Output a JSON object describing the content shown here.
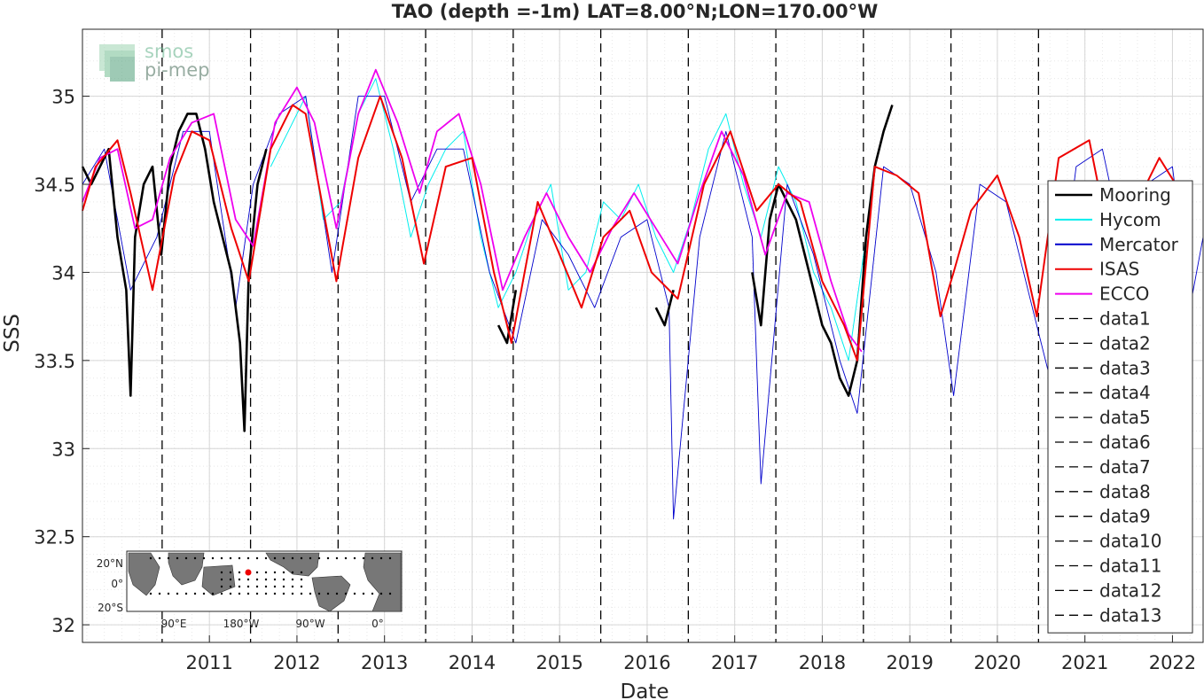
{
  "chart_data": {
    "type": "line",
    "title": "TAO (depth =-1m) LAT=8.00°N;LON=170.00°W",
    "xlabel": "Date",
    "ylabel": "SSS",
    "xlim": [
      2010.05,
      2022.85
    ],
    "ylim": [
      31.9,
      35.38
    ],
    "x_ticks": [
      "2011",
      "2012",
      "2013",
      "2014",
      "2015",
      "2016",
      "2017",
      "2018",
      "2019",
      "2020",
      "2021",
      "2022"
    ],
    "y_ticks": [
      "32",
      "32.5",
      "33",
      "33.5",
      "34",
      "34.5",
      "35"
    ],
    "grid": true,
    "minor_grid": true,
    "legend_position": "right",
    "watermark": "smos pi-mep",
    "series": [
      {
        "name": "Mooring",
        "color": "#000000",
        "x": [
          2010.05,
          2010.15,
          2010.25,
          2010.35,
          2010.45,
          2010.55,
          2010.6,
          2010.65,
          2010.75,
          2010.85,
          2010.95,
          2011.05,
          2011.15,
          2011.25,
          2011.35,
          2011.45,
          2011.55,
          2011.65,
          2011.75,
          2011.85,
          2011.9,
          2011.95,
          2012.05,
          2012.15,
          null,
          2014.8,
          2014.9,
          2015.0,
          null,
          2016.6,
          2016.7,
          2016.8,
          null,
          2017.7,
          2017.8,
          2017.9,
          2018.0,
          2018.1,
          2018.2,
          2018.3,
          2018.4,
          2018.5,
          2018.6,
          2018.7,
          2018.8,
          2018.9,
          2019.0,
          2019.1,
          2019.2,
          2019.3
        ],
        "y": [
          34.6,
          34.5,
          34.6,
          34.7,
          34.2,
          33.9,
          33.3,
          34.2,
          34.5,
          34.6,
          34.1,
          34.6,
          34.8,
          34.9,
          34.9,
          34.7,
          34.4,
          34.2,
          34.0,
          33.6,
          33.1,
          34.0,
          34.5,
          34.7,
          null,
          33.7,
          33.6,
          33.9,
          null,
          33.8,
          33.7,
          33.9,
          null,
          34.0,
          33.7,
          34.3,
          34.5,
          34.4,
          34.3,
          34.1,
          33.9,
          33.7,
          33.6,
          33.4,
          33.3,
          33.5,
          34.2,
          34.6,
          34.8,
          34.95
        ]
      },
      {
        "name": "Hycom",
        "color": "#00eeee",
        "x": [
          2012.2,
          2012.4,
          2012.6,
          2012.8,
          2013.0,
          2013.2,
          2013.4,
          2013.6,
          2013.8,
          2014.0,
          2014.2,
          2014.4,
          2014.6,
          2014.8,
          2015.0,
          2015.2,
          2015.4,
          2015.6,
          2015.8,
          2016.0,
          2016.2,
          2016.4,
          2016.6,
          2016.8,
          2017.0,
          2017.2,
          2017.4,
          2017.6,
          2017.8,
          2018.0,
          2018.2,
          2018.4,
          2018.6,
          2018.8,
          2019.0
        ],
        "y": [
          34.6,
          34.8,
          35.0,
          34.3,
          34.4,
          34.9,
          35.1,
          34.7,
          34.2,
          34.5,
          34.7,
          34.8,
          34.2,
          33.8,
          34.0,
          34.3,
          34.5,
          33.9,
          34.0,
          34.4,
          34.3,
          34.5,
          34.2,
          34.0,
          34.3,
          34.7,
          34.9,
          34.5,
          34.2,
          34.6,
          34.4,
          34.0,
          33.8,
          33.5,
          34.2
        ]
      },
      {
        "name": "Mercator",
        "color": "#0000cc",
        "x": [
          2010.05,
          2010.3,
          2010.6,
          2010.9,
          2011.2,
          2011.5,
          2011.8,
          2012.0,
          2012.3,
          2012.6,
          2012.9,
          2013.2,
          2013.5,
          2013.8,
          2014.1,
          2014.4,
          2014.7,
          2015.0,
          2015.3,
          2015.6,
          2015.9,
          2016.2,
          2016.5,
          2016.75,
          2016.8,
          2017.1,
          2017.4,
          2017.7,
          2017.8,
          2018.1,
          2018.4,
          2018.7,
          2018.9,
          2019.2,
          2019.5,
          2019.8,
          2020.0,
          2020.3,
          2020.6,
          2020.9,
          2021.1,
          2021.4,
          2021.7,
          2022.0,
          2022.2,
          2022.5,
          2022.7,
          2022.85
        ],
        "y": [
          34.5,
          34.7,
          33.9,
          34.2,
          34.8,
          34.8,
          33.8,
          34.5,
          34.9,
          35.0,
          34.0,
          35.0,
          35.0,
          34.4,
          34.7,
          34.7,
          34.0,
          33.6,
          34.3,
          34.1,
          33.8,
          34.2,
          34.3,
          33.8,
          32.6,
          34.2,
          34.8,
          34.2,
          32.8,
          34.5,
          34.1,
          33.5,
          33.2,
          34.6,
          34.5,
          34.0,
          33.3,
          34.5,
          34.4,
          33.8,
          33.4,
          34.6,
          34.7,
          34.0,
          34.5,
          34.6,
          33.8,
          34.2
        ]
      },
      {
        "name": "ISAS",
        "color": "#ee0000",
        "x": [
          2010.05,
          2010.2,
          2010.45,
          2010.6,
          2010.85,
          2011.1,
          2011.3,
          2011.5,
          2011.75,
          2011.95,
          2012.2,
          2012.45,
          2012.6,
          2012.95,
          2013.2,
          2013.45,
          2013.7,
          2013.95,
          2014.2,
          2014.5,
          2014.75,
          2014.95,
          2015.25,
          2015.5,
          2015.75,
          2016.0,
          2016.3,
          2016.55,
          2016.85,
          2017.15,
          2017.45,
          2017.75,
          2018.0,
          2018.25,
          2018.5,
          2018.75,
          2018.9,
          2019.1,
          2019.35,
          2019.6,
          2019.85,
          2020.0,
          2020.2,
          2020.5,
          2020.75,
          2020.95,
          2021.2,
          2021.55,
          2021.75,
          2021.95,
          2022.15,
          2022.35,
          2022.6
        ],
        "y": [
          34.35,
          34.6,
          34.75,
          34.45,
          33.9,
          34.55,
          34.8,
          34.75,
          34.25,
          33.95,
          34.7,
          34.95,
          34.9,
          33.95,
          34.65,
          35.0,
          34.65,
          34.05,
          34.6,
          34.65,
          34.0,
          33.6,
          34.4,
          34.1,
          33.8,
          34.2,
          34.35,
          34.0,
          33.85,
          34.5,
          34.8,
          34.35,
          34.5,
          34.4,
          33.95,
          33.7,
          33.5,
          34.6,
          34.55,
          34.45,
          33.75,
          34.0,
          34.35,
          34.55,
          34.2,
          33.75,
          34.65,
          34.75,
          34.25,
          33.95,
          34.45,
          34.65,
          34.45
        ]
      },
      {
        "name": "ECCO",
        "color": "#ee00ee",
        "x": [
          2010.05,
          2010.25,
          2010.45,
          2010.65,
          2010.85,
          2011.05,
          2011.3,
          2011.55,
          2011.8,
          2012.0,
          2012.25,
          2012.5,
          2012.7,
          2012.95,
          2013.2,
          2013.4,
          2013.65,
          2013.9,
          2014.1,
          2014.35,
          2014.6,
          2014.85,
          2015.1,
          2015.35,
          2015.6,
          2015.85,
          2016.1,
          2016.35,
          2016.6,
          2016.85,
          2017.1,
          2017.35,
          2017.6,
          2017.85,
          2018.1,
          2018.35,
          2018.6,
          2018.8,
          2018.95
        ],
        "y": [
          34.4,
          34.65,
          34.7,
          34.25,
          34.3,
          34.65,
          34.85,
          34.9,
          34.3,
          34.15,
          34.85,
          35.05,
          34.85,
          34.25,
          34.9,
          35.15,
          34.85,
          34.45,
          34.8,
          34.9,
          34.5,
          33.9,
          34.2,
          34.45,
          34.2,
          34.0,
          34.25,
          34.45,
          34.25,
          34.05,
          34.45,
          34.8,
          34.55,
          34.1,
          34.45,
          34.4,
          33.95,
          33.65,
          33.55
        ]
      },
      {
        "name": "data1",
        "color": "#000000",
        "x_line": 2010.96
      },
      {
        "name": "data2",
        "color": "#000000",
        "x_line": 2011.97
      },
      {
        "name": "data3",
        "color": "#000000",
        "x_line": 2012.97
      },
      {
        "name": "data4",
        "color": "#000000",
        "x_line": 2013.97
      },
      {
        "name": "data5",
        "color": "#000000",
        "x_line": 2014.97
      },
      {
        "name": "data6",
        "color": "#000000",
        "x_line": 2015.97
      },
      {
        "name": "data7",
        "color": "#000000",
        "x_line": 2016.97
      },
      {
        "name": "data8",
        "color": "#000000",
        "x_line": 2017.97
      },
      {
        "name": "data9",
        "color": "#000000",
        "x_line": 2018.97
      },
      {
        "name": "data10",
        "color": "#000000",
        "x_line": 2019.97
      },
      {
        "name": "data11",
        "color": "#000000",
        "x_line": 2020.97
      },
      {
        "name": "data12",
        "color": "#000000"
      },
      {
        "name": "data13",
        "color": "#000000"
      }
    ],
    "inset_map": {
      "y_ticks": [
        "20°N",
        "0°",
        "20°S"
      ],
      "x_ticks": [
        "90°E",
        "180°W",
        "90°W",
        "0°"
      ],
      "marker_color": "#ee0000"
    }
  }
}
